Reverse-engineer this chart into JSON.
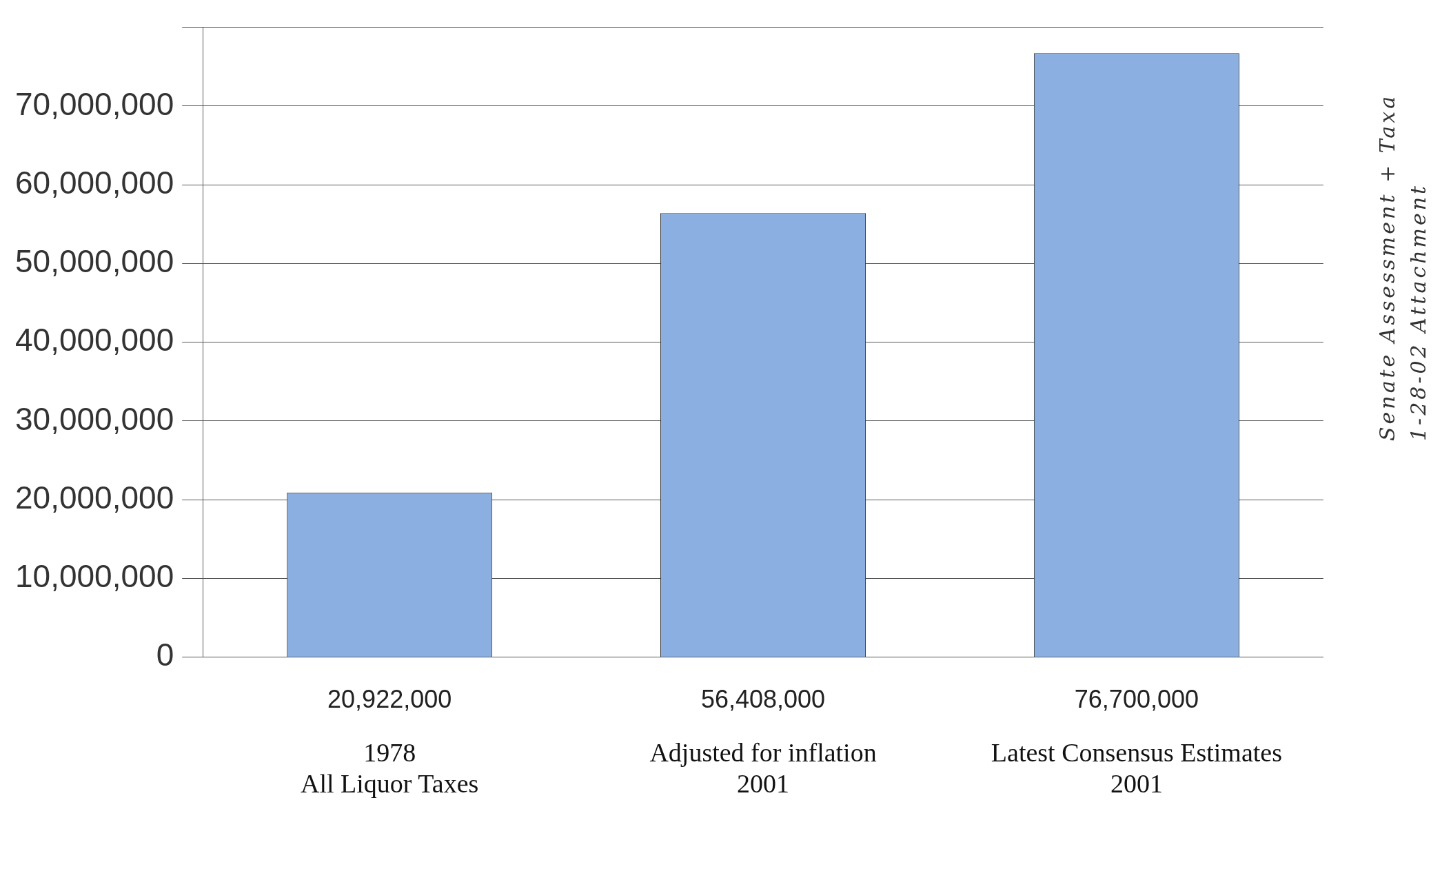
{
  "chart_data": {
    "type": "bar",
    "categories": [
      "1978\nAll Liquor Taxes",
      "Adjusted for inflation\n2001",
      "Latest Consensus Estimates\n2001"
    ],
    "values": [
      20922000,
      56408000,
      76700000
    ],
    "color": "#8aafe0",
    "ylim": [
      0,
      80000000
    ],
    "yticks": [
      0,
      {
        "value": 10000000,
        "label": "10,000,000"
      },
      {
        "value": 20000000,
        "label": "20,000,000"
      },
      {
        "value": 30000000,
        "label": "30,000,000"
      },
      {
        "value": 40000000,
        "label": "40,000,000"
      },
      {
        "value": 50000000,
        "label": "50,000,000"
      },
      {
        "value": 60000000,
        "label": "60,000,000"
      },
      {
        "value": 70000000,
        "label": "70,000,000"
      },
      {
        "value": 80000000,
        "label": null
      }
    ],
    "grid": "y",
    "legend": false,
    "value_labels": [
      "20,922,000",
      "56,408,000",
      "76,700,000"
    ],
    "annotations": [
      "Senate Assessment + Taxa",
      "1-28-02 Attachment"
    ]
  }
}
